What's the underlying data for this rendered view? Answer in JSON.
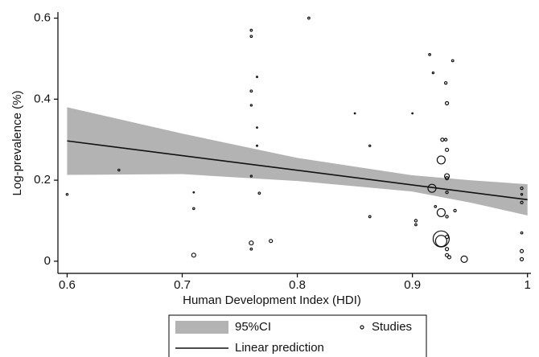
{
  "chart_data": {
    "type": "scatter",
    "xlabel": "Human Development Index (HDI)",
    "ylabel": "Log-prevalence (%)",
    "xlim": [
      0.592,
      1.003
    ],
    "ylim": [
      -0.03,
      0.615
    ],
    "xticks": [
      0.6,
      0.7,
      0.8,
      0.9,
      1.0
    ],
    "yticks": [
      0,
      0.2,
      0.4,
      0.6
    ],
    "grid": false,
    "legend": "bottom",
    "series": [
      {
        "name": "95%CI",
        "kind": "band",
        "color": "#b3b3b3",
        "x": [
          0.6,
          0.7,
          0.8,
          0.9,
          0.95,
          1.0
        ],
        "upper": [
          0.38,
          0.315,
          0.255,
          0.212,
          0.2,
          0.19
        ],
        "lower": [
          0.213,
          0.215,
          0.198,
          0.172,
          0.145,
          0.113
        ]
      },
      {
        "name": "Linear prediction",
        "kind": "line",
        "color": "#111111",
        "x": [
          0.6,
          1.0
        ],
        "values": [
          0.297,
          0.152
        ]
      },
      {
        "name": "Studies",
        "kind": "points",
        "color": "#111111",
        "x": [
          0.6,
          0.645,
          0.71,
          0.71,
          0.71,
          0.76,
          0.76,
          0.76,
          0.76,
          0.76,
          0.76,
          0.76,
          0.765,
          0.765,
          0.765,
          0.767,
          0.777,
          0.81,
          0.85,
          0.863,
          0.863,
          0.9,
          0.903,
          0.903,
          0.915,
          0.918,
          0.917,
          0.92,
          0.925,
          0.925,
          0.925,
          0.925,
          0.926,
          0.929,
          0.929,
          0.93,
          0.93,
          0.93,
          0.93,
          0.93,
          0.93,
          0.93,
          0.93,
          0.93,
          0.932,
          0.935,
          0.937,
          0.945,
          0.995,
          0.995,
          0.995,
          0.995,
          0.995,
          0.995
        ],
        "values": [
          0.165,
          0.225,
          0.17,
          0.13,
          0.015,
          0.57,
          0.555,
          0.42,
          0.385,
          0.21,
          0.045,
          0.03,
          0.455,
          0.33,
          0.285,
          0.168,
          0.05,
          0.6,
          0.365,
          0.285,
          0.11,
          0.365,
          0.1,
          0.09,
          0.51,
          0.465,
          0.18,
          0.135,
          0.25,
          0.12,
          0.055,
          0.05,
          0.3,
          0.3,
          0.44,
          0.39,
          0.275,
          0.21,
          0.205,
          0.17,
          0.11,
          0.06,
          0.03,
          0.015,
          0.01,
          0.495,
          0.125,
          0.005,
          0.18,
          0.165,
          0.145,
          0.07,
          0.025,
          0.005
        ],
        "sizes": [
          1.2,
          1.2,
          0.8,
          1.2,
          2.5,
          1.3,
          1.3,
          1.3,
          1.1,
          1.1,
          2.5,
          1.3,
          0.9,
          0.8,
          0.9,
          1.3,
          2,
          1.3,
          0.8,
          1.1,
          1.3,
          0.8,
          1.6,
          1.3,
          1.3,
          1.1,
          5,
          1.3,
          5,
          5,
          10,
          7,
          2,
          1.6,
          1.6,
          2,
          2,
          3,
          2,
          1.6,
          1.6,
          2,
          2,
          2,
          2,
          1.3,
          1.6,
          4,
          1.6,
          1.1,
          1.6,
          1.3,
          2,
          2
        ]
      }
    ]
  }
}
